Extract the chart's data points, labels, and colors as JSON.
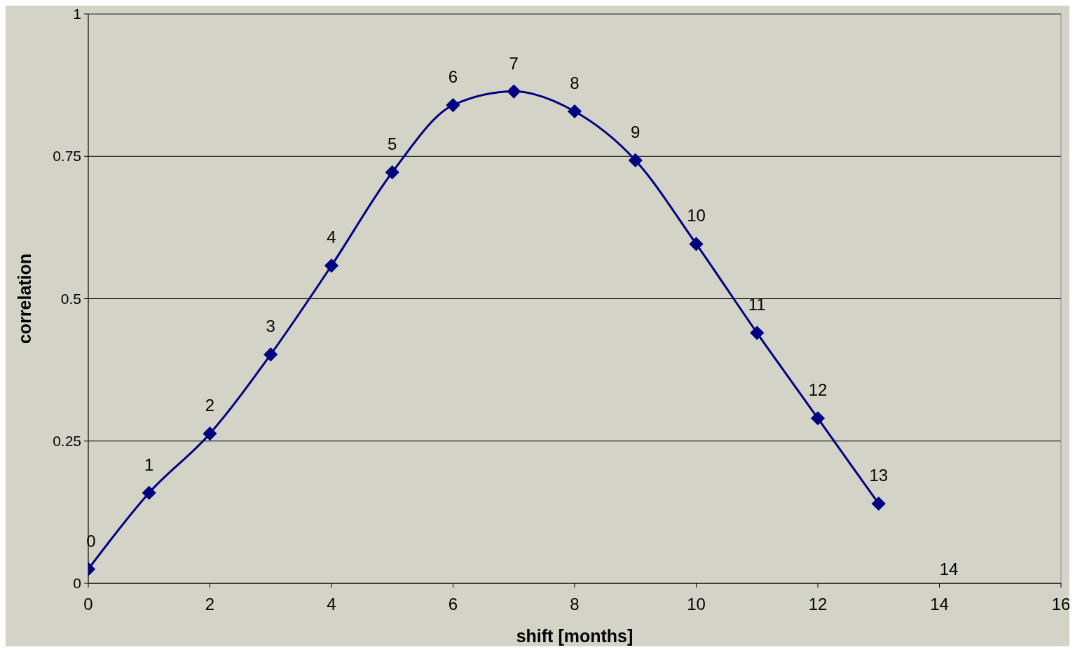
{
  "chart_data": {
    "type": "line",
    "xlabel": "shift [months]",
    "ylabel": "correlation",
    "x": [
      0,
      1,
      2,
      3,
      4,
      5,
      6,
      7,
      8,
      9,
      10,
      11,
      12,
      13
    ],
    "series": [
      {
        "color": "#000080",
        "values": [
          0.025,
          0.159,
          0.263,
          0.402,
          0.558,
          0.722,
          0.84,
          0.864,
          0.829,
          0.743,
          0.596,
          0.44,
          0.29,
          0.14
        ]
      }
    ],
    "annotations": [
      {
        "text": "0",
        "x": 0,
        "y": 0.025
      },
      {
        "text": "1",
        "x": 1,
        "y": 0.159
      },
      {
        "text": "2",
        "x": 2,
        "y": 0.263
      },
      {
        "text": "3",
        "x": 3,
        "y": 0.402
      },
      {
        "text": "4",
        "x": 4,
        "y": 0.558
      },
      {
        "text": "5",
        "x": 5,
        "y": 0.722
      },
      {
        "text": "6",
        "x": 6,
        "y": 0.84
      },
      {
        "text": "7",
        "x": 7,
        "y": 0.864
      },
      {
        "text": "8",
        "x": 8,
        "y": 0.829
      },
      {
        "text": "9",
        "x": 9,
        "y": 0.743
      },
      {
        "text": "10",
        "x": 10,
        "y": 0.596
      },
      {
        "text": "11",
        "x": 11,
        "y": 0.44
      },
      {
        "text": "12",
        "x": 12,
        "y": 0.29
      },
      {
        "text": "13",
        "x": 13,
        "y": 0.14
      },
      "14"
    ],
    "xlim": [
      0,
      16
    ],
    "xticks": [
      0,
      2,
      4,
      6,
      8,
      10,
      12,
      14,
      16
    ],
    "ylim": [
      0,
      1
    ],
    "yticks": [
      0,
      0.25,
      0.5,
      0.75,
      1
    ],
    "grid": "y",
    "marker": "diamond",
    "line_style": "solid"
  }
}
